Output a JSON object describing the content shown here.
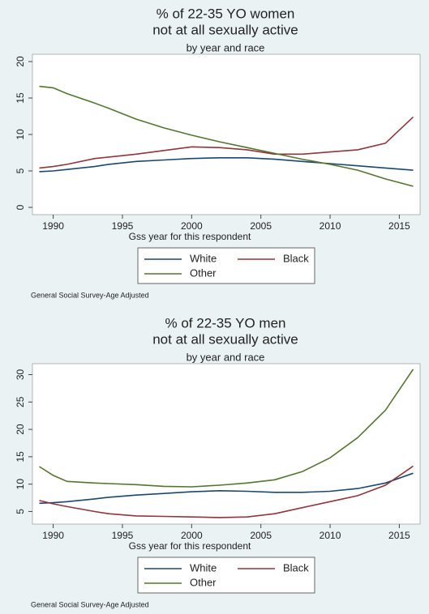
{
  "chart_data": [
    {
      "type": "line",
      "title": [
        "% of 22-35 YO women",
        "not at all sexually active"
      ],
      "subtitle": "by year and race",
      "x_label": "Gss year for this respondent",
      "note": "General Social Survey-Age Adjusted",
      "x": [
        1989,
        1990,
        1991,
        1993,
        1994,
        1996,
        1998,
        2000,
        2002,
        2004,
        2006,
        2008,
        2010,
        2012,
        2014,
        2016
      ],
      "series": [
        {
          "name": "White",
          "color": "#1a476f",
          "values": [
            4.9,
            5.0,
            5.2,
            5.6,
            5.9,
            6.3,
            6.5,
            6.7,
            6.8,
            6.8,
            6.6,
            6.3,
            6.0,
            5.7,
            5.4,
            5.1
          ]
        },
        {
          "name": "Black",
          "color": "#90353b",
          "values": [
            5.4,
            5.6,
            5.9,
            6.7,
            6.9,
            7.3,
            7.8,
            8.3,
            8.2,
            7.9,
            7.3,
            7.3,
            7.6,
            7.9,
            8.8,
            12.4
          ]
        },
        {
          "name": "Other",
          "color": "#55752f",
          "values": [
            16.6,
            16.4,
            15.6,
            14.3,
            13.6,
            12.1,
            10.9,
            9.9,
            9.0,
            8.2,
            7.4,
            6.6,
            5.9,
            5.1,
            3.9,
            2.9
          ]
        }
      ],
      "xlim": [
        1988.5,
        2016.5
      ],
      "xticks": [
        1990,
        1995,
        2000,
        2005,
        2010,
        2015
      ],
      "ylim": [
        -1,
        21
      ],
      "yticks": [
        0,
        5,
        10,
        15,
        20
      ],
      "grid": false
    },
    {
      "type": "line",
      "title": [
        "% of 22-35 YO men",
        "not at all sexually active"
      ],
      "subtitle": "by year and race",
      "x_label": "Gss year for this respondent",
      "note": "General Social Survey-Age Adjusted",
      "x": [
        1989,
        1990,
        1991,
        1993,
        1994,
        1996,
        1998,
        2000,
        2002,
        2004,
        2006,
        2008,
        2010,
        2012,
        2014,
        2016
      ],
      "series": [
        {
          "name": "White",
          "color": "#1a476f",
          "values": [
            6.5,
            6.6,
            6.8,
            7.3,
            7.6,
            8.0,
            8.3,
            8.6,
            8.8,
            8.7,
            8.5,
            8.5,
            8.7,
            9.2,
            10.2,
            12.0
          ]
        },
        {
          "name": "Black",
          "color": "#90353b",
          "values": [
            7.0,
            6.4,
            5.9,
            5.0,
            4.6,
            4.2,
            4.1,
            4.0,
            3.9,
            4.0,
            4.6,
            5.7,
            6.8,
            7.9,
            9.8,
            13.3
          ]
        },
        {
          "name": "Other",
          "color": "#55752f",
          "values": [
            13.2,
            11.6,
            10.5,
            10.2,
            10.1,
            9.9,
            9.6,
            9.5,
            9.8,
            10.2,
            10.8,
            12.3,
            14.8,
            18.5,
            23.5,
            31.0
          ]
        }
      ],
      "xlim": [
        1988.5,
        2016.5
      ],
      "xticks": [
        1990,
        1995,
        2000,
        2005,
        2010,
        2015
      ],
      "ylim": [
        2.7,
        32
      ],
      "yticks": [
        5,
        10,
        15,
        20,
        25,
        30
      ],
      "grid": false
    }
  ]
}
